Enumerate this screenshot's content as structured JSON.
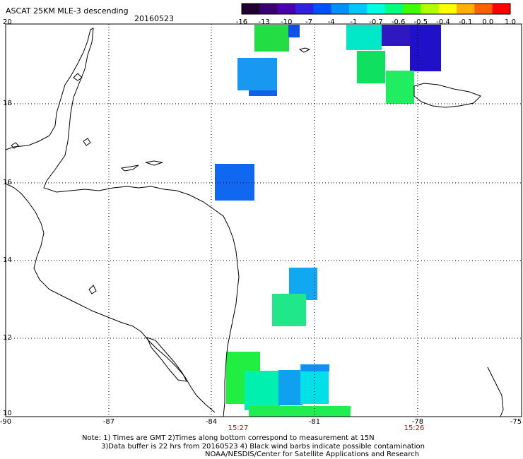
{
  "title": "ASCAT 25KM MLE-3 descending",
  "date": "20160523",
  "colorbar": {
    "labels": [
      "-16",
      "-13",
      "-10",
      "-7",
      "-4",
      "-1",
      "-0.7",
      "-0.6",
      "-0.5",
      "-0.4",
      "-0.1",
      "0.0",
      "1.0"
    ],
    "colors": [
      "#200030",
      "#3a0070",
      "#4a00b0",
      "#3020e0",
      "#0050ff",
      "#0090ff",
      "#00c8ff",
      "#00ffe0",
      "#00ff80",
      "#40ff00",
      "#b0ff00",
      "#ffff00",
      "#ffb000",
      "#ff6000",
      "#ff0000"
    ]
  },
  "axes": {
    "x_ticks": [
      "-90",
      "-87",
      "-84",
      "-81",
      "-78",
      "-75"
    ],
    "y_ticks": [
      "20",
      "18",
      "16",
      "14",
      "12",
      "10"
    ],
    "time_labels": [
      "15:27",
      "15:26"
    ]
  },
  "notes": [
    "Note: 1) Times are GMT 2)Times along bottom correspond to measurement at 15N",
    "3)Data buffer is 22 hrs from 20160523 4) Black wind barbs indicate possible contamination",
    "NOAA/NESDIS/Center for Satellite Applications and Research"
  ],
  "colors": {
    "coast": "#000000",
    "grid": "#000000",
    "time_label": "#b01818"
  }
}
